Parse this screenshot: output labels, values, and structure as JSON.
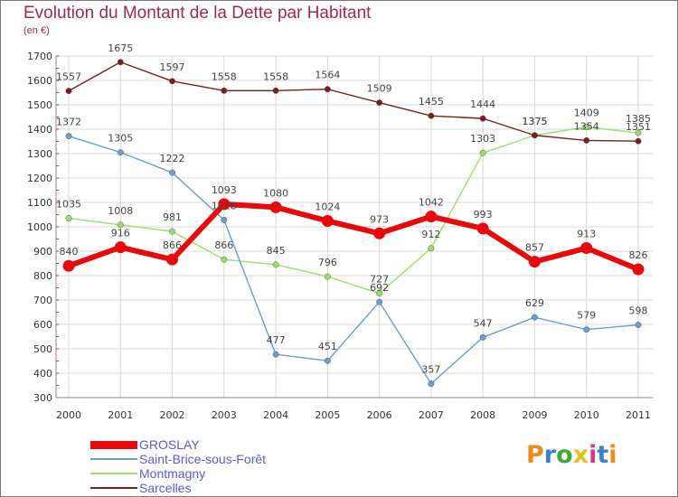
{
  "title": "Evolution du Montant de la Dette par Habitant",
  "unit_label": "(en €)",
  "logo_text": "Proxiti",
  "colors": {
    "title": "#a0285a",
    "grid": "#d8d8d8",
    "legend_text": "#5a5ad0"
  },
  "chart_data": {
    "type": "line",
    "title": "Evolution du Montant de la Dette par Habitant",
    "ylabel": "(en €)",
    "xlabel": "",
    "x": [
      "2000",
      "2001",
      "2002",
      "2003",
      "2004",
      "2005",
      "2006",
      "2007",
      "2008",
      "2009",
      "2010",
      "2011"
    ],
    "ylim": [
      300,
      1700
    ],
    "yticks": [
      300,
      400,
      500,
      600,
      700,
      800,
      900,
      1000,
      1100,
      1200,
      1300,
      1400,
      1500,
      1600,
      1700
    ],
    "grid": true,
    "legend_position": "bottom-left",
    "series": [
      {
        "name": "GROSLAY",
        "color": "#e8090c",
        "values": [
          840,
          916,
          866,
          1093,
          1080,
          1024,
          973,
          1042,
          993,
          857,
          913,
          826
        ]
      },
      {
        "name": "Saint-Brice-sous-Forêt",
        "color": "#6a9fd0",
        "values": [
          1372,
          1305,
          1222,
          1028,
          477,
          451,
          692,
          357,
          547,
          629,
          579,
          598
        ]
      },
      {
        "name": "Montmagny",
        "color": "#99e06a",
        "values": [
          1035,
          1008,
          981,
          866,
          845,
          796,
          727,
          912,
          1303,
          1375,
          1409,
          1385
        ]
      },
      {
        "name": "Sarcelles",
        "color": "#7a1e1e",
        "values": [
          1557,
          1675,
          1597,
          1558,
          1558,
          1564,
          1509,
          1455,
          1444,
          1375,
          1354,
          1351
        ]
      }
    ]
  }
}
